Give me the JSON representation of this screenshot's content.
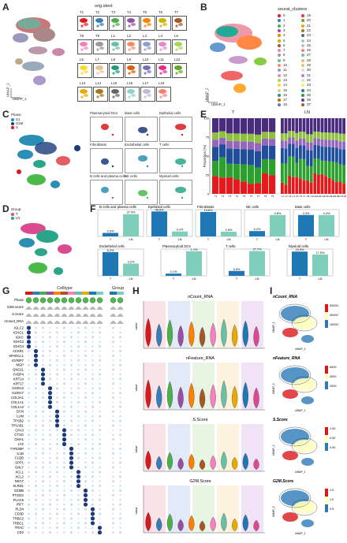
{
  "panels": {
    "A": {
      "letter": "A",
      "title": "orig.ident",
      "samples": [
        "T1",
        "T2",
        "T3",
        "T4",
        "T5",
        "T6",
        "T7",
        "T8",
        "T9",
        "L1",
        "L2",
        "L3",
        "L4",
        "L5",
        "L6",
        "L7",
        "L8",
        "L9",
        "L10",
        "L11",
        "L12",
        "L13",
        "L14",
        "L15",
        "L16",
        "L17",
        "L18"
      ],
      "xlab": "UMAP_1",
      "ylab": "UMAP_2"
    },
    "B": {
      "letter": "B",
      "title": "seurat_clusters",
      "clusters": [
        "0",
        "1",
        "2",
        "3",
        "4",
        "5",
        "6",
        "7",
        "8",
        "9",
        "10",
        "11",
        "12",
        "13",
        "14",
        "15",
        "16",
        "17",
        "18",
        "19",
        "20",
        "21",
        "22",
        "23",
        "24",
        "25",
        "26",
        "27",
        "28",
        "29",
        "30",
        "31",
        "32",
        "33",
        "34",
        "35",
        "36",
        "37"
      ],
      "xlab": "UMAP_1",
      "ylab": "UMAP_2"
    },
    "C": {
      "letter": "C",
      "legend_title": "Phase:",
      "phases": [
        "G1",
        "G2M",
        "S"
      ],
      "celltypes": [
        "Plasmacytoid DCs",
        "Mast cells",
        "Epithelial cells",
        "Fibroblasts",
        "Endothelial cells",
        "T cells",
        "B cells and plasma cells",
        "NK cells",
        "Myeloid cells"
      ]
    },
    "D": {
      "letter": "D",
      "legend_title": "Group:",
      "groups": [
        "T",
        "LN"
      ]
    },
    "E": {
      "letter": "E",
      "ylabel": "Proportion (%)",
      "left_title": "T",
      "right_title": "LN"
    },
    "F": {
      "letter": "F",
      "xT": "T",
      "xLN": "LN",
      "ylabel": "Proportion (%)"
    },
    "G": {
      "letter": "G",
      "top_title": "Celltype",
      "top_title2": "Group",
      "rows": [
        "Phase",
        "G2M.Score",
        "S.Score",
        "nCount_RNA"
      ],
      "genes": [
        "IGLC2",
        "IGHG1",
        "IGKC",
        "IGHG3",
        "IGHG4",
        "ACKR1",
        "SPARCL1",
        "IGFBP7",
        "MGP",
        "GNG11",
        "FABP4",
        "KRT14",
        "KRT17",
        "S100A2",
        "S100A7",
        "COL3A1",
        "COL1A1",
        "COL1A2",
        "DCN",
        "LUM",
        "TPSB2",
        "TPSAB1",
        "CPA3",
        "CTSG",
        "CMA1",
        "LYZ",
        "TYROBP",
        "IL1B",
        "C1QB",
        "SPP1",
        "GNLY",
        "XCL1",
        "XCL2",
        "NKG7",
        "KLRD1",
        "GZMB",
        "PTGDS",
        "PLAC8",
        "IRF7",
        "PLD4",
        "CD3D",
        "TRBC2",
        "TRBC1",
        "TRAC",
        "CD2"
      ]
    },
    "H": {
      "letter": "H",
      "titles": [
        "nCount_RNA",
        "nFeature_RNA",
        "S.Score",
        "G2M.Score"
      ],
      "ylab": "value"
    },
    "I": {
      "letter": "I",
      "titles": [
        "nCount_RNA",
        "nFeature_RNA",
        "S.Score",
        "G2M.Score"
      ],
      "scales": [
        [
          "50000",
          "30000",
          "10000"
        ],
        [
          "6000",
          "4000",
          "2000"
        ],
        [
          "1.00",
          "0.50",
          "0.00"
        ],
        [
          "1.5",
          "1.0",
          "0.5"
        ]
      ],
      "xlab": "UMAP_1",
      "ylab": "UMAP_2"
    }
  },
  "chart_data": [
    {
      "type": "bar",
      "title": "B cells and plasma cells",
      "categories": [
        "T",
        "LN"
      ],
      "values": [
        5.9,
        37.4
      ],
      "labels": [
        "5.9%",
        "37.4%"
      ],
      "ylim": [
        0,
        45
      ]
    },
    {
      "type": "bar",
      "title": "Epithelial cells",
      "categories": [
        "T",
        "LN"
      ],
      "values": [
        46.6,
        9.2
      ],
      "labels": [
        "46.6%",
        "9.2%"
      ],
      "ylim": [
        0,
        50
      ]
    },
    {
      "type": "bar",
      "title": "Fibroblasts",
      "categories": [
        "T",
        "LN"
      ],
      "values": [
        14.6,
        2.8
      ],
      "labels": [
        "14.6%",
        "2.8%"
      ],
      "ylim": [
        0,
        16
      ]
    },
    {
      "type": "bar",
      "title": "NK cells",
      "categories": [
        "T",
        "LN"
      ],
      "values": [
        0.2,
        0.8
      ],
      "labels": [
        "0.2%",
        "0.8%"
      ],
      "ylim": [
        0,
        1
      ]
    },
    {
      "type": "bar",
      "title": "Mast cells",
      "categories": [
        "T",
        "LN"
      ],
      "values": [
        0.4,
        0.4
      ],
      "labels": [
        "0.4%",
        "0.4%"
      ],
      "ylim": [
        0,
        0.5
      ]
    },
    {
      "type": "bar",
      "title": "Endothelial cells",
      "categories": [
        "T",
        "LN"
      ],
      "values": [
        6.2,
        3.2
      ],
      "labels": [
        "6.2%",
        "3.2%"
      ],
      "ylim": [
        0,
        7
      ]
    },
    {
      "type": "bar",
      "title": "Plasmacytoid DCs",
      "categories": [
        "T",
        "LN"
      ],
      "values": [
        0.1,
        1.1
      ],
      "labels": [
        "0.1%",
        "1.1%"
      ],
      "ylim": [
        0,
        1.2
      ]
    },
    {
      "type": "bar",
      "title": "T cells",
      "categories": [
        "T",
        "LN"
      ],
      "values": [
        5.5,
        27.7
      ],
      "labels": [
        "5.5%",
        "27.7%"
      ],
      "ylim": [
        0,
        30
      ]
    },
    {
      "type": "bar",
      "title": "Myeloid cells",
      "categories": [
        "T",
        "LN"
      ],
      "values": [
        19.9,
        17.5
      ],
      "labels": [
        "19.9%",
        "17.5%"
      ],
      "ylim": [
        0,
        22
      ]
    }
  ],
  "colors": {
    "T": "#1f77b4",
    "LN": "#7fcdbb",
    "G1": "#2b8fb5",
    "G2M": "#1b3b7a",
    "S": "#d7191c"
  }
}
